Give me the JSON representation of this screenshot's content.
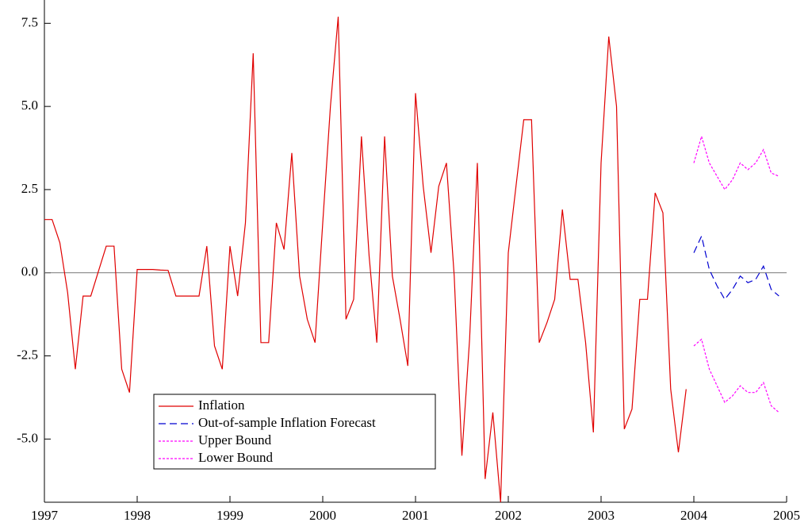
{
  "chart_data": {
    "type": "line",
    "x": [
      1997,
      1997.083,
      1997.167,
      1997.25,
      1997.333,
      1997.417,
      1997.5,
      1997.583,
      1997.667,
      1997.75,
      1997.833,
      1997.917,
      1998,
      1998.083,
      1998.167,
      1998.25,
      1998.333,
      1998.417,
      1998.5,
      1998.583,
      1998.667,
      1998.75,
      1998.833,
      1998.917,
      1999,
      1999.083,
      1999.167,
      1999.25,
      1999.333,
      1999.417,
      1999.5,
      1999.583,
      1999.667,
      1999.75,
      1999.833,
      1999.917,
      2000,
      2000.083,
      2000.167,
      2000.25,
      2000.333,
      2000.417,
      2000.5,
      2000.583,
      2000.667,
      2000.75,
      2000.833,
      2000.917,
      2001,
      2001.083,
      2001.167,
      2001.25,
      2001.333,
      2001.417,
      2001.5,
      2001.583,
      2001.667,
      2001.75,
      2001.833,
      2001.917,
      2002,
      2002.083,
      2002.167,
      2002.25,
      2002.333,
      2002.417,
      2002.5,
      2002.583,
      2002.667,
      2002.75,
      2002.833,
      2002.917,
      2003,
      2003.083,
      2003.167,
      2003.25,
      2003.333,
      2003.417,
      2003.5,
      2003.583,
      2003.667,
      2003.75,
      2003.833,
      2003.917,
      2004,
      2004.083,
      2004.167,
      2004.25,
      2004.333,
      2004.417,
      2004.5,
      2004.583,
      2004.667,
      2004.75,
      2004.833,
      2004.917
    ],
    "series": [
      {
        "name": "Inflation",
        "color": "#e00000",
        "linestyle": "solid",
        "values": [
          1.6,
          1.6,
          0.9,
          -0.6,
          -2.9,
          -0.7,
          -0.7,
          0.05,
          0.8,
          0.8,
          -2.9,
          -3.6,
          0.1,
          0.1,
          0.1,
          0.08,
          0.07,
          -0.7,
          -0.7,
          -0.7,
          -0.7,
          0.8,
          -2.2,
          -2.9,
          0.8,
          -0.7,
          1.5,
          6.6,
          -2.1,
          -2.1,
          1.5,
          0.7,
          3.6,
          -0.1,
          -1.4,
          -2.1,
          1.5,
          5.0,
          7.7,
          -1.4,
          -0.8,
          4.1,
          0.5,
          -2.1,
          4.1,
          -0.1,
          -1.4,
          -2.8,
          5.4,
          2.6,
          0.6,
          2.6,
          3.3,
          -0.1,
          -5.5,
          -2.0,
          3.3,
          -6.2,
          -4.2,
          -6.9,
          0.6,
          2.6,
          4.6,
          4.6,
          -2.1,
          -1.5,
          -0.8,
          1.9,
          -0.2,
          -0.2,
          -2.1,
          -4.8,
          3.3,
          7.1,
          5.0,
          -4.7,
          -4.1,
          -0.8,
          -0.8,
          2.4,
          1.8,
          -3.5,
          -5.4,
          -3.5,
          null,
          null,
          null,
          null,
          null,
          null,
          null,
          null,
          null,
          null,
          null,
          null
        ]
      },
      {
        "name": "Out-of-sample Inflation Forecast",
        "color": "#0000d0",
        "linestyle": "dashed",
        "values": [
          null,
          null,
          null,
          null,
          null,
          null,
          null,
          null,
          null,
          null,
          null,
          null,
          null,
          null,
          null,
          null,
          null,
          null,
          null,
          null,
          null,
          null,
          null,
          null,
          null,
          null,
          null,
          null,
          null,
          null,
          null,
          null,
          null,
          null,
          null,
          null,
          null,
          null,
          null,
          null,
          null,
          null,
          null,
          null,
          null,
          null,
          null,
          null,
          null,
          null,
          null,
          null,
          null,
          null,
          null,
          null,
          null,
          null,
          null,
          null,
          null,
          null,
          null,
          null,
          null,
          null,
          null,
          null,
          null,
          null,
          null,
          null,
          null,
          null,
          null,
          null,
          null,
          null,
          null,
          null,
          null,
          null,
          null,
          null,
          0.6,
          1.1,
          0.1,
          -0.4,
          -0.8,
          -0.5,
          -0.1,
          -0.3,
          -0.2,
          0.2,
          -0.5,
          -0.7
        ]
      },
      {
        "name": "Upper Bound",
        "color": "#ff00ff",
        "linestyle": "dotted",
        "values": [
          null,
          null,
          null,
          null,
          null,
          null,
          null,
          null,
          null,
          null,
          null,
          null,
          null,
          null,
          null,
          null,
          null,
          null,
          null,
          null,
          null,
          null,
          null,
          null,
          null,
          null,
          null,
          null,
          null,
          null,
          null,
          null,
          null,
          null,
          null,
          null,
          null,
          null,
          null,
          null,
          null,
          null,
          null,
          null,
          null,
          null,
          null,
          null,
          null,
          null,
          null,
          null,
          null,
          null,
          null,
          null,
          null,
          null,
          null,
          null,
          null,
          null,
          null,
          null,
          null,
          null,
          null,
          null,
          null,
          null,
          null,
          null,
          null,
          null,
          null,
          null,
          null,
          null,
          null,
          null,
          null,
          null,
          null,
          null,
          3.3,
          4.1,
          3.3,
          2.9,
          2.5,
          2.8,
          3.3,
          3.1,
          3.3,
          3.7,
          3.0,
          2.9
        ]
      },
      {
        "name": "Lower Bound",
        "color": "#ff00ff",
        "linestyle": "dotted",
        "values": [
          null,
          null,
          null,
          null,
          null,
          null,
          null,
          null,
          null,
          null,
          null,
          null,
          null,
          null,
          null,
          null,
          null,
          null,
          null,
          null,
          null,
          null,
          null,
          null,
          null,
          null,
          null,
          null,
          null,
          null,
          null,
          null,
          null,
          null,
          null,
          null,
          null,
          null,
          null,
          null,
          null,
          null,
          null,
          null,
          null,
          null,
          null,
          null,
          null,
          null,
          null,
          null,
          null,
          null,
          null,
          null,
          null,
          null,
          null,
          null,
          null,
          null,
          null,
          null,
          null,
          null,
          null,
          null,
          null,
          null,
          null,
          null,
          null,
          null,
          null,
          null,
          null,
          null,
          null,
          null,
          null,
          null,
          null,
          null,
          -2.2,
          -2.0,
          -2.9,
          -3.4,
          -3.9,
          -3.7,
          -3.4,
          -3.6,
          -3.6,
          -3.3,
          -4.0,
          -4.2
        ]
      }
    ],
    "xlim": [
      1997,
      2005
    ],
    "xticks": [
      1997,
      1998,
      1999,
      2000,
      2001,
      2002,
      2003,
      2004,
      2005
    ],
    "ylim": [
      -6.9,
      8.2
    ],
    "yticks": [
      {
        "value": 7.5,
        "label": "7.5"
      },
      {
        "value": 5,
        "label": "5.0"
      },
      {
        "value": 2.5,
        "label": "2.5"
      },
      {
        "value": 0,
        "label": "0.0"
      },
      {
        "value": -2.5,
        "label": "-2.5"
      },
      {
        "value": -5,
        "label": "-5.0"
      }
    ],
    "reference_line": 0,
    "legend": "lower left"
  }
}
